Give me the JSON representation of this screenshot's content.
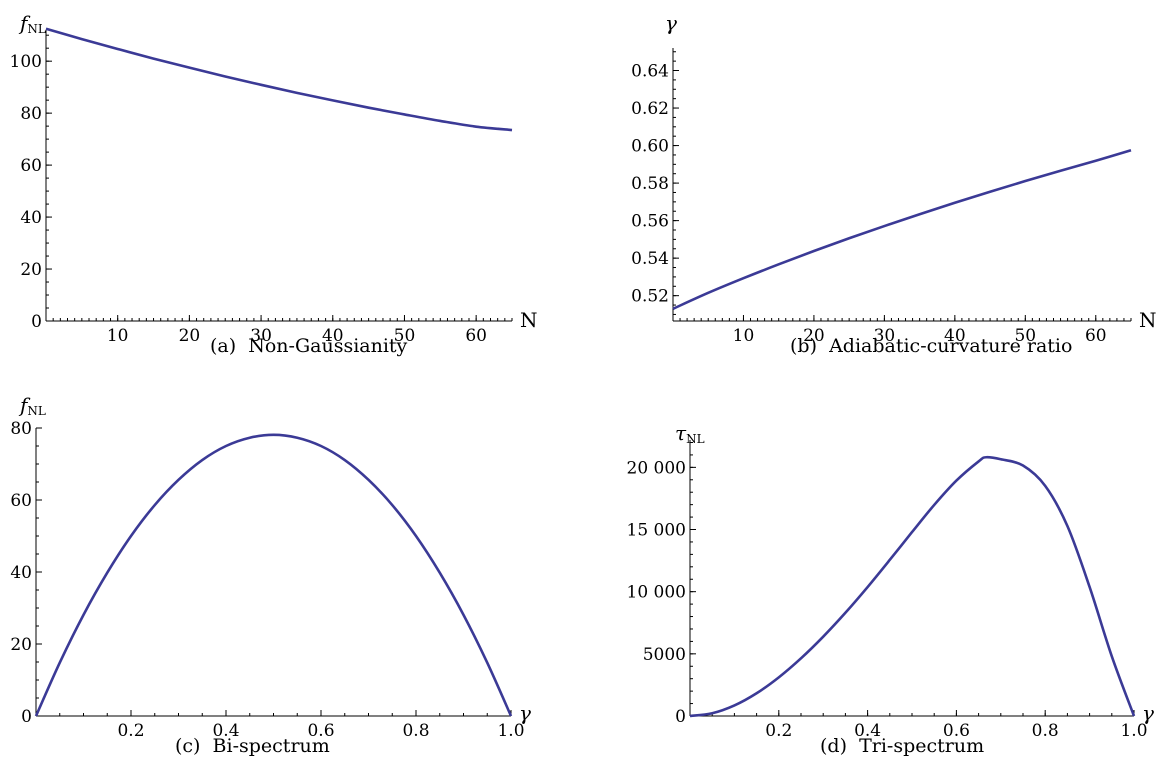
{
  "colors": {
    "curve": "#3b3a96",
    "axis": "#000000"
  },
  "chart_data": [
    {
      "type": "line",
      "caption": "(a)  Non-Gaussianity",
      "xlabel": "N",
      "ylabel_main": "f",
      "ylabel_sub": "NL",
      "ylabel_italic": true,
      "xlim": [
        0,
        65
      ],
      "ylim": [
        0,
        112
      ],
      "xticks": [
        10,
        20,
        30,
        40,
        50,
        60
      ],
      "xtick_labels": [
        "10",
        "20",
        "30",
        "40",
        "50",
        "60"
      ],
      "yticks": [
        0,
        20,
        40,
        60,
        80,
        100
      ],
      "ytick_labels": [
        "0",
        "20",
        "40",
        "60",
        "80",
        "100"
      ],
      "minor_x": 1,
      "minor_y": 5,
      "series": [
        {
          "x": [
            0,
            5,
            10,
            15,
            20,
            25,
            30,
            35,
            40,
            45,
            50,
            55,
            60,
            65
          ],
          "y": [
            112.5,
            108.5,
            104.7,
            101.0,
            97.5,
            94.1,
            90.9,
            87.8,
            84.9,
            82.1,
            79.5,
            77.0,
            74.8,
            73.5
          ]
        }
      ]
    },
    {
      "type": "line",
      "caption": "(b)  Adiabatic-curvature ratio",
      "xlabel": "N",
      "ylabel_main": "γ",
      "ylabel_sub": "",
      "ylabel_italic": true,
      "xlim": [
        0,
        65
      ],
      "ylim": [
        0.5065,
        0.652
      ],
      "xticks": [
        10,
        20,
        30,
        40,
        50,
        60
      ],
      "xtick_labels": [
        "10",
        "20",
        "30",
        "40",
        "50",
        "60"
      ],
      "yticks": [
        0.52,
        0.54,
        0.56,
        0.58,
        0.6,
        0.62,
        0.64
      ],
      "ytick_labels": [
        "0.52",
        "0.54",
        "0.56",
        "0.58",
        "0.60",
        "0.62",
        "0.64"
      ],
      "minor_x": 1,
      "minor_y": 0.005,
      "series": [
        {
          "x": [
            0,
            5,
            10,
            15,
            20,
            25,
            30,
            35,
            40,
            45,
            50,
            55,
            60,
            65
          ],
          "y": [
            0.513,
            0.5215,
            0.5293,
            0.5367,
            0.5438,
            0.5506,
            0.5571,
            0.5634,
            0.5695,
            0.5754,
            0.5811,
            0.5866,
            0.5919,
            0.5975
          ]
        }
      ]
    },
    {
      "type": "line",
      "caption": "(c)  Bi-spectrum",
      "xlabel": "γ",
      "ylabel_main": "f",
      "ylabel_sub": "NL",
      "ylabel_italic": true,
      "xlim": [
        0,
        1
      ],
      "ylim": [
        0,
        80
      ],
      "xticks": [
        0.2,
        0.4,
        0.6,
        0.8,
        1.0
      ],
      "xtick_labels": [
        "0.2",
        "0.4",
        "0.6",
        "0.8",
        "1.0"
      ],
      "yticks": [
        0,
        20,
        40,
        60,
        80
      ],
      "ytick_labels": [
        "0",
        "20",
        "40",
        "60",
        "80"
      ],
      "minor_x": 0.05,
      "minor_y": 5,
      "series": [
        {
          "x": [
            0,
            0.05,
            0.1,
            0.15,
            0.2,
            0.25,
            0.3,
            0.35,
            0.4,
            0.45,
            0.5,
            0.55,
            0.6,
            0.65,
            0.7,
            0.75,
            0.8,
            0.85,
            0.9,
            0.95,
            1.0
          ],
          "y": [
            0,
            14.8,
            28.1,
            39.8,
            50.0,
            58.6,
            65.6,
            71.1,
            75.0,
            77.3,
            78.1,
            77.3,
            75.0,
            71.1,
            65.6,
            58.6,
            50.0,
            39.8,
            28.1,
            14.8,
            0
          ]
        }
      ]
    },
    {
      "type": "line",
      "caption": "(d)  Tri-spectrum",
      "xlabel": "γ",
      "ylabel_main": "τ",
      "ylabel_sub": "NL",
      "ylabel_italic": true,
      "xlim": [
        0,
        1
      ],
      "ylim": [
        0,
        22200
      ],
      "xticks": [
        0.2,
        0.4,
        0.6,
        0.8,
        1.0
      ],
      "xtick_labels": [
        "0.2",
        "0.4",
        "0.6",
        "0.8",
        "1.0"
      ],
      "yticks": [
        0,
        5000,
        10000,
        15000,
        20000
      ],
      "ytick_labels": [
        "0",
        "5000",
        "10 000",
        "15 000",
        "20 000"
      ],
      "minor_x": 0.05,
      "minor_y": 1000,
      "series": [
        {
          "x": [
            0,
            0.05,
            0.1,
            0.15,
            0.2,
            0.25,
            0.3,
            0.35,
            0.4,
            0.45,
            0.5,
            0.55,
            0.6,
            0.65,
            0.667,
            0.7,
            0.75,
            0.8,
            0.85,
            0.9,
            0.95,
            1.0
          ],
          "y": [
            0,
            222,
            851,
            1831,
            3110,
            4640,
            6381,
            8302,
            10373,
            12558,
            14791,
            16976,
            18935,
            20477,
            20813,
            20650,
            20147,
            18510,
            15281,
            10379,
            4800,
            0
          ]
        }
      ]
    }
  ]
}
